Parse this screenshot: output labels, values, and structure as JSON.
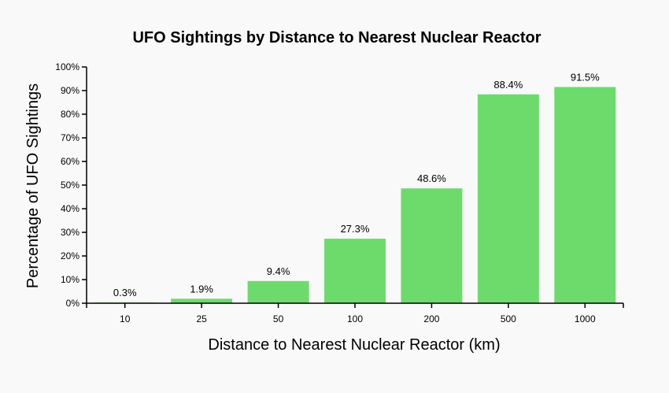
{
  "chart_data": {
    "type": "bar",
    "title": "UFO Sightings by Distance to Nearest Nuclear Reactor",
    "xlabel": "Distance to Nearest Nuclear Reactor (km)",
    "ylabel": "Percentage of UFO Sightings",
    "categories": [
      "10",
      "25",
      "50",
      "100",
      "200",
      "500",
      "1000"
    ],
    "values": [
      0.3,
      1.9,
      9.4,
      27.3,
      48.6,
      88.4,
      91.5
    ],
    "data_labels": [
      "0.3%",
      "1.9%",
      "9.4%",
      "27.3%",
      "48.6%",
      "88.4%",
      "91.5%"
    ],
    "ylim": [
      0,
      100
    ],
    "yticks": [
      0,
      10,
      20,
      30,
      40,
      50,
      60,
      70,
      80,
      90,
      100
    ],
    "ytick_labels": [
      "0%",
      "10%",
      "20%",
      "30%",
      "40%",
      "50%",
      "60%",
      "70%",
      "80%",
      "90%",
      "100%"
    ],
    "bar_color": "#6cdb6c",
    "grid": false,
    "legend": "none"
  }
}
